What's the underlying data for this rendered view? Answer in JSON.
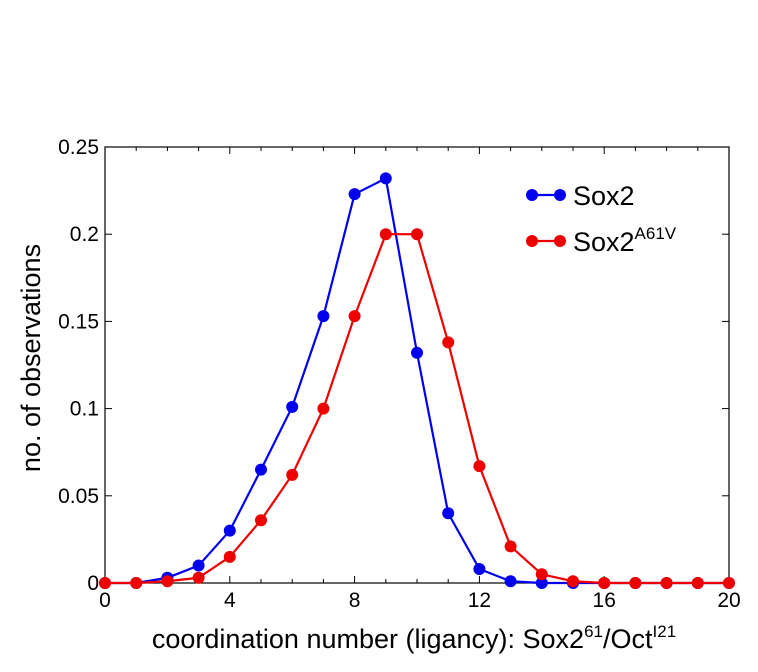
{
  "chart_data": {
    "type": "line",
    "title": "",
    "xlabel": {
      "main": "coordination number (ligancy): Sox2",
      "sup1": "61",
      "mid": "/Oct",
      "sup2": "I21"
    },
    "ylabel": "no. of observations",
    "xlim": [
      0,
      20
    ],
    "ylim": [
      0,
      0.25
    ],
    "x_ticks": [
      0,
      4,
      8,
      12,
      16,
      20
    ],
    "y_ticks": [
      0,
      0.05,
      0.1,
      0.15,
      0.2,
      0.25
    ],
    "x_tick_labels": [
      "0",
      "4",
      "8",
      "12",
      "16",
      "20"
    ],
    "y_tick_labels": [
      "0",
      "0.05",
      "0.1",
      "0.15",
      "0.2",
      "0.25"
    ],
    "grid": false,
    "legend_position": "top-right",
    "series": [
      {
        "name": "Sox2",
        "name_sup": "",
        "color": "#0000ee",
        "x": [
          0,
          1,
          2,
          3,
          4,
          5,
          6,
          7,
          8,
          9,
          10,
          11,
          12,
          13,
          14,
          15,
          16,
          17,
          18,
          19,
          20
        ],
        "y": [
          0,
          0,
          0.003,
          0.01,
          0.03,
          0.065,
          0.101,
          0.153,
          0.223,
          0.232,
          0.132,
          0.04,
          0.008,
          0.001,
          0,
          0,
          0,
          0,
          0,
          0,
          0
        ]
      },
      {
        "name": "Sox2",
        "name_sup": "A61V",
        "color": "#ee0000",
        "x": [
          0,
          1,
          2,
          3,
          4,
          5,
          6,
          7,
          8,
          9,
          10,
          11,
          12,
          13,
          14,
          15,
          16,
          17,
          18,
          19,
          20
        ],
        "y": [
          0,
          0,
          0.001,
          0.003,
          0.015,
          0.036,
          0.062,
          0.1,
          0.153,
          0.2,
          0.2,
          0.138,
          0.067,
          0.021,
          0.005,
          0.001,
          0,
          0,
          0,
          0,
          0
        ]
      }
    ]
  }
}
